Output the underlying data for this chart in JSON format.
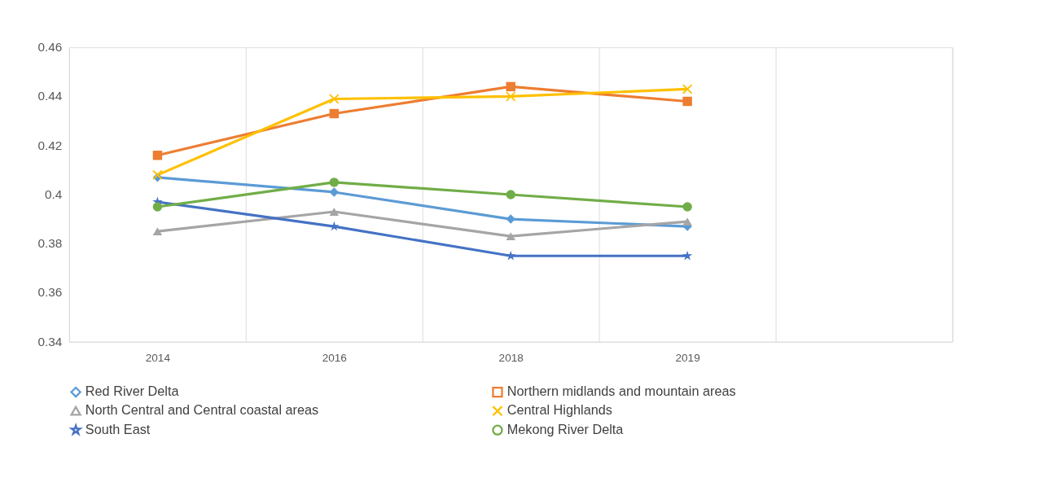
{
  "chart_data": {
    "type": "line",
    "categories": [
      "2014",
      "2016",
      "2018",
      "2019",
      null
    ],
    "ylim": [
      0.34,
      0.46
    ],
    "yticks": [
      0.34,
      0.36,
      0.38,
      0.4,
      0.42,
      0.44,
      0.46
    ],
    "grid": "x",
    "legend": "bottom",
    "line_style": "solid",
    "series": [
      {
        "name": "Red River Delta",
        "color": "#5b9bd5",
        "marker": "diamond",
        "values": [
          0.407,
          0.401,
          0.39,
          0.387,
          null
        ]
      },
      {
        "name": "Northern midlands and mountain areas",
        "color": "#ed7d31",
        "marker": "square",
        "values": [
          0.416,
          0.433,
          0.444,
          0.438,
          null
        ]
      },
      {
        "name": "North Central and Central coastal areas",
        "color": "#a5a5a5",
        "marker": "triangle",
        "values": [
          0.385,
          0.393,
          0.383,
          0.389,
          null
        ]
      },
      {
        "name": "Central Highlands",
        "color": "#ffc000",
        "marker": "cross",
        "values": [
          0.408,
          0.439,
          0.44,
          0.443,
          null
        ]
      },
      {
        "name": "South East",
        "color": "#4472c4",
        "marker": "star",
        "values": [
          0.397,
          0.387,
          0.375,
          0.375,
          null
        ]
      },
      {
        "name": "Mekong River Delta",
        "color": "#70ad47",
        "marker": "circle",
        "values": [
          0.395,
          0.405,
          0.4,
          0.395,
          null
        ]
      }
    ]
  }
}
